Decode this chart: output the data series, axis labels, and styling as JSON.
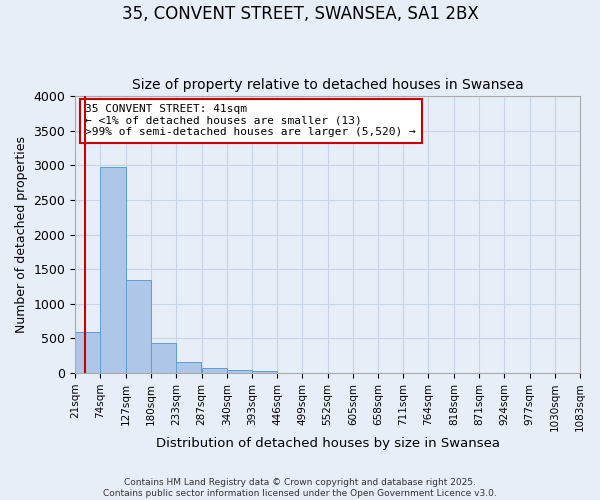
{
  "title": "35, CONVENT STREET, SWANSEA, SA1 2BX",
  "subtitle": "Size of property relative to detached houses in Swansea",
  "xlabel": "Distribution of detached houses by size in Swansea",
  "ylabel": "Number of detached properties",
  "bar_values": [
    600,
    2970,
    1350,
    430,
    160,
    80,
    45,
    35,
    0,
    0,
    0,
    0,
    0,
    0,
    0,
    0,
    0,
    0,
    0,
    0,
    0
  ],
  "bin_labels": [
    "21sqm",
    "74sqm",
    "127sqm",
    "180sqm",
    "233sqm",
    "287sqm",
    "340sqm",
    "393sqm",
    "446sqm",
    "499sqm",
    "552sqm",
    "605sqm",
    "658sqm",
    "711sqm",
    "764sqm",
    "818sqm",
    "871sqm",
    "924sqm",
    "977sqm",
    "1030sqm",
    "1083sqm"
  ],
  "bin_edges": [
    21,
    74,
    127,
    180,
    233,
    287,
    340,
    393,
    446,
    499,
    552,
    605,
    658,
    711,
    764,
    818,
    871,
    924,
    977,
    1030,
    1083
  ],
  "bar_color": "#aec6e8",
  "bar_edge_color": "#5a9fd4",
  "ylim": [
    0,
    4000
  ],
  "yticks": [
    0,
    500,
    1000,
    1500,
    2000,
    2500,
    3000,
    3500,
    4000
  ],
  "property_size": 41,
  "vline_color": "#cc0000",
  "annotation_text": "35 CONVENT STREET: 41sqm\n← <1% of detached houses are smaller (13)\n>99% of semi-detached houses are larger (5,520) →",
  "annotation_box_color": "#cc0000",
  "annotation_bg": "#ffffff",
  "grid_color": "#c8d4e8",
  "bg_color": "#e8eef8",
  "footer_line1": "Contains HM Land Registry data © Crown copyright and database right 2025.",
  "footer_line2": "Contains public sector information licensed under the Open Government Licence v3.0.",
  "title_fontsize": 12,
  "subtitle_fontsize": 10
}
